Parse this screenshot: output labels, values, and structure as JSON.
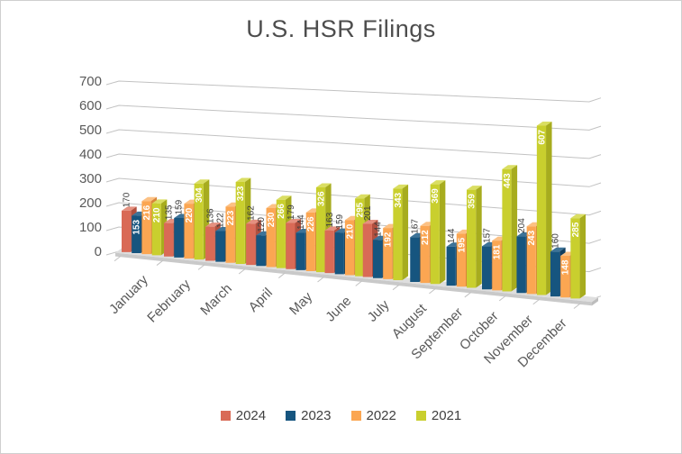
{
  "frame": {
    "background": "#ffffff",
    "border_color": "#cfcfcf"
  },
  "chart_data": {
    "type": "bar",
    "variant": "3d-clustered-column",
    "title": "U.S. HSR Filings",
    "categories": [
      "January",
      "February",
      "March",
      "April",
      "May",
      "June",
      "July",
      "August",
      "September",
      "October",
      "November",
      "December"
    ],
    "series": [
      {
        "name": "2024",
        "color": "#d96a56",
        "color_top": "#e59180",
        "color_side": "#b14f3e",
        "label_placement": "outside",
        "values": [
          170,
          135,
          136,
          162,
          179,
          163,
          201,
          null,
          null,
          null,
          null,
          null
        ]
      },
      {
        "name": "2023",
        "color": "#16557f",
        "color_top": "#3d7398",
        "color_side": "#103e5e",
        "label_placement": "outside",
        "label_placement_overrides": {
          "January": "inside"
        },
        "values": [
          153,
          159,
          122,
          120,
          144,
          159,
          144,
          167,
          144,
          157,
          204,
          160
        ]
      },
      {
        "name": "2022",
        "color": "#fba652",
        "color_top": "#fcc184",
        "color_side": "#d8843a",
        "label_placement": "inside",
        "values": [
          216,
          220,
          223,
          230,
          226,
          210,
          192,
          212,
          195,
          181,
          243,
          148
        ]
      },
      {
        "name": "2021",
        "color": "#c9cf2e",
        "color_top": "#dade62",
        "color_side": "#a7ac1e",
        "label_placement": "inside",
        "values": [
          210,
          304,
          323,
          266,
          326,
          295,
          343,
          369,
          359,
          443,
          607,
          285
        ]
      }
    ],
    "ylim": [
      0,
      700
    ],
    "ytick_step": 100,
    "ytick_labels": [
      "0",
      "100",
      "200",
      "300",
      "400",
      "500",
      "600",
      "700"
    ],
    "grid": true,
    "legend_position": "bottom",
    "colors": {
      "label_outside_text": "#3f3f3f",
      "label_inside_text": "#ffffff",
      "axis_text": "#595959",
      "gridline": "#c2c2c2",
      "floor_top": "#dedede",
      "floor_front": "#c9c9c9",
      "floor_cap": "#bdbdbd"
    }
  }
}
